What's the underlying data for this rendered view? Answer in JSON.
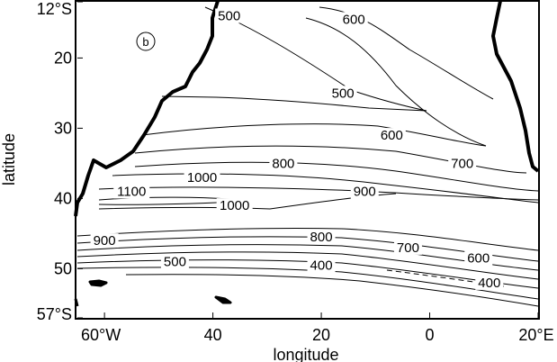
{
  "panel_label": "b",
  "axes": {
    "xlabel": "longitude",
    "ylabel": "latitude",
    "x_ticks": [
      {
        "value": -60,
        "label": "60°W"
      },
      {
        "value": -40,
        "label": "40"
      },
      {
        "value": -20,
        "label": "20"
      },
      {
        "value": 0,
        "label": "0"
      },
      {
        "value": 20,
        "label": "20°E"
      }
    ],
    "y_ticks": [
      {
        "value": -12,
        "label": "12°S"
      },
      {
        "value": -20,
        "label": "20"
      },
      {
        "value": -30,
        "label": "30"
      },
      {
        "value": -40,
        "label": "40"
      },
      {
        "value": -50,
        "label": "50"
      },
      {
        "value": -57,
        "label": "57°S"
      }
    ],
    "xlim": [
      -65,
      20
    ],
    "ylim": [
      -57,
      -12
    ]
  },
  "contour_labels": [
    {
      "text": "500",
      "lon": -37,
      "lat": -14.5
    },
    {
      "text": "600",
      "lon": -14,
      "lat": -15
    },
    {
      "text": "500",
      "lon": -16,
      "lat": -25.5
    },
    {
      "text": "600",
      "lon": -7,
      "lat": -31.5
    },
    {
      "text": "800",
      "lon": -27,
      "lat": -35.5
    },
    {
      "text": "700",
      "lon": 6,
      "lat": -35.5
    },
    {
      "text": "1000",
      "lon": -42,
      "lat": -37.5
    },
    {
      "text": "900",
      "lon": -12,
      "lat": -39.5
    },
    {
      "text": "1100",
      "lon": -55,
      "lat": -39.5
    },
    {
      "text": "1000",
      "lon": -36,
      "lat": -41.5
    },
    {
      "text": "900",
      "lon": -60,
      "lat": -46.5
    },
    {
      "text": "800",
      "lon": -20,
      "lat": -46
    },
    {
      "text": "700",
      "lon": -4,
      "lat": -47.5
    },
    {
      "text": "600",
      "lon": 9,
      "lat": -49
    },
    {
      "text": "500",
      "lon": -47,
      "lat": -49.5
    },
    {
      "text": "400",
      "lon": -20,
      "lat": -50
    },
    {
      "text": "400",
      "lon": 11,
      "lat": -52.5
    }
  ]
}
